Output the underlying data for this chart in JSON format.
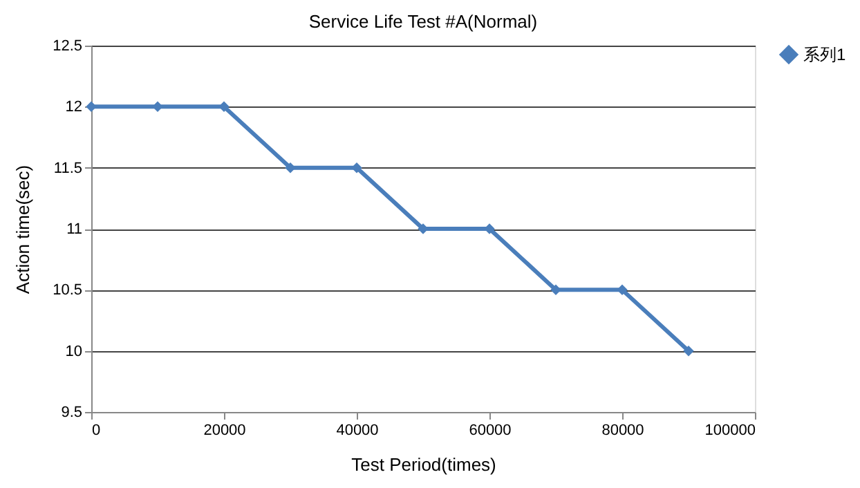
{
  "chart_data": {
    "type": "line",
    "title": "Service Life Test #A(Normal)",
    "xlabel": "Test Period(times)",
    "ylabel": "Action time(sec)",
    "x": [
      0,
      10000,
      20000,
      30000,
      40000,
      50000,
      60000,
      70000,
      80000,
      90000
    ],
    "series": [
      {
        "name": "系列1",
        "color": "#4a7ebb",
        "values": [
          12,
          12,
          12,
          11.5,
          11.5,
          11,
          11,
          10.5,
          10.5,
          10
        ]
      }
    ],
    "xlim": [
      0,
      100000
    ],
    "xticks": [
      0,
      20000,
      40000,
      60000,
      80000,
      100000
    ],
    "ylim": [
      9.5,
      12.5
    ],
    "yticks": [
      9.5,
      10,
      10.5,
      11,
      11.5,
      12,
      12.5
    ],
    "grid": "y",
    "legend": "right",
    "marker": "diamond",
    "line_style": "solid"
  }
}
